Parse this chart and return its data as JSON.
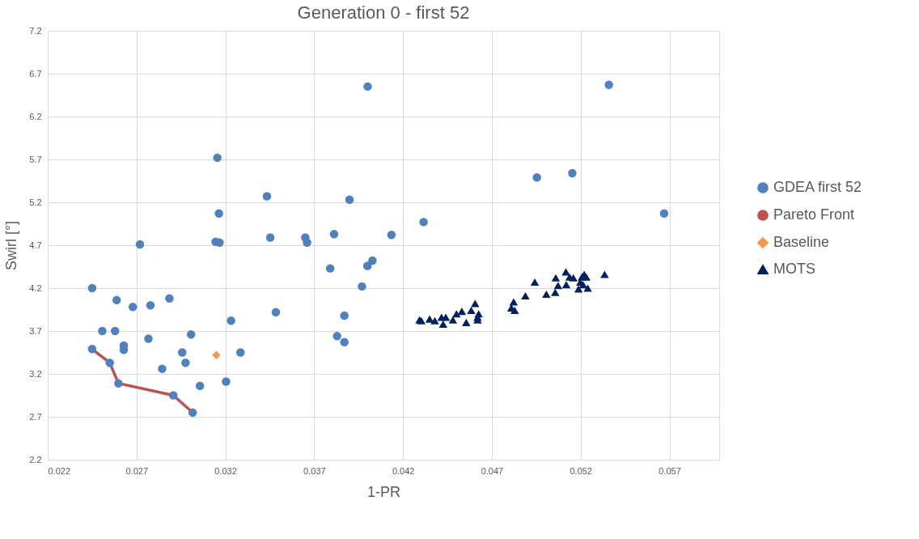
{
  "chart_data": {
    "type": "scatter",
    "title": "Generation 0 - first 52",
    "xlabel": "1-PR",
    "ylabel": "Swirl [°]",
    "xlim": [
      0.022,
      0.0598
    ],
    "ylim": [
      2.2,
      7.2
    ],
    "xticks": [
      0.022,
      0.027,
      0.032,
      0.037,
      0.042,
      0.047,
      0.052,
      0.057
    ],
    "yticks": [
      2.2,
      2.7,
      3.2,
      3.7,
      4.2,
      4.7,
      5.2,
      5.7,
      6.2,
      6.7,
      7.2
    ],
    "grid": true,
    "legend": "right",
    "series": [
      {
        "name": "GDEA first 52",
        "marker": "circle",
        "color": "#4f81bd",
        "x": [
          0.0245,
          0.02588,
          0.02679,
          0.02778,
          0.02885,
          0.03484,
          0.03232,
          0.02507,
          0.02579,
          0.03007,
          0.02767,
          0.02628,
          0.02628,
          0.0245,
          0.02957,
          0.03285,
          0.02549,
          0.02976,
          0.02844,
          0.02598,
          0.03057,
          0.03204,
          0.02907,
          0.03016,
          0.02719,
          0.03155,
          0.03434,
          0.03899,
          0.03164,
          0.04316,
          0.03145,
          0.03167,
          0.03453,
          0.0365,
          0.0366,
          0.03812,
          0.04135,
          0.0379,
          0.04028,
          0.04,
          0.03969,
          0.0387,
          0.03829,
          0.0387,
          0.04001,
          0.05359,
          0.04954,
          0.05153,
          0.0567
        ],
        "values": [
          4.2,
          4.06,
          3.98,
          4.0,
          4.08,
          3.92,
          3.82,
          3.7,
          3.7,
          3.66,
          3.61,
          3.53,
          3.48,
          3.49,
          3.45,
          3.45,
          3.33,
          3.33,
          3.26,
          3.09,
          3.06,
          3.11,
          2.95,
          2.75,
          4.71,
          5.72,
          5.27,
          5.23,
          5.07,
          4.97,
          4.74,
          4.73,
          4.79,
          4.79,
          4.73,
          4.83,
          4.82,
          4.43,
          4.52,
          4.46,
          4.22,
          3.88,
          3.64,
          3.57,
          6.55,
          6.57,
          5.49,
          5.54,
          5.07
        ]
      },
      {
        "name": "Pareto Front",
        "type": "line",
        "line_style": "solid",
        "color": "#c0504d",
        "x": [
          0.0245,
          0.02549,
          0.02598,
          0.02907,
          0.03016
        ],
        "values": [
          3.49,
          3.33,
          3.09,
          2.95,
          2.75
        ]
      },
      {
        "name": "Baseline",
        "marker": "diamond",
        "color": "#f79646",
        "x": [
          0.03149
        ],
        "values": [
          3.42
        ]
      },
      {
        "name": "MOTS",
        "marker": "triangle",
        "color": "#002060",
        "x": [
          0.04293,
          0.04303,
          0.0435,
          0.04379,
          0.04417,
          0.04426,
          0.04441,
          0.04481,
          0.04501,
          0.04531,
          0.04556,
          0.04584,
          0.04606,
          0.0462,
          0.04626,
          0.0462,
          0.0481,
          0.04823,
          0.04829,
          0.04889,
          0.04942,
          0.05007,
          0.05057,
          0.0506,
          0.05073,
          0.05117,
          0.05119,
          0.05138,
          0.05159,
          0.05188,
          0.05198,
          0.05207,
          0.0522,
          0.05232,
          0.0524,
          0.05214,
          0.05335
        ],
        "values": [
          3.83,
          3.82,
          3.84,
          3.82,
          3.86,
          3.78,
          3.86,
          3.83,
          3.9,
          3.93,
          3.8,
          3.94,
          4.02,
          3.86,
          3.9,
          3.83,
          3.97,
          4.04,
          3.94,
          4.11,
          4.27,
          4.13,
          4.15,
          4.32,
          4.23,
          4.39,
          4.24,
          4.33,
          4.32,
          4.19,
          4.27,
          4.33,
          4.36,
          4.33,
          4.2,
          4.24,
          4.36
        ]
      }
    ]
  }
}
